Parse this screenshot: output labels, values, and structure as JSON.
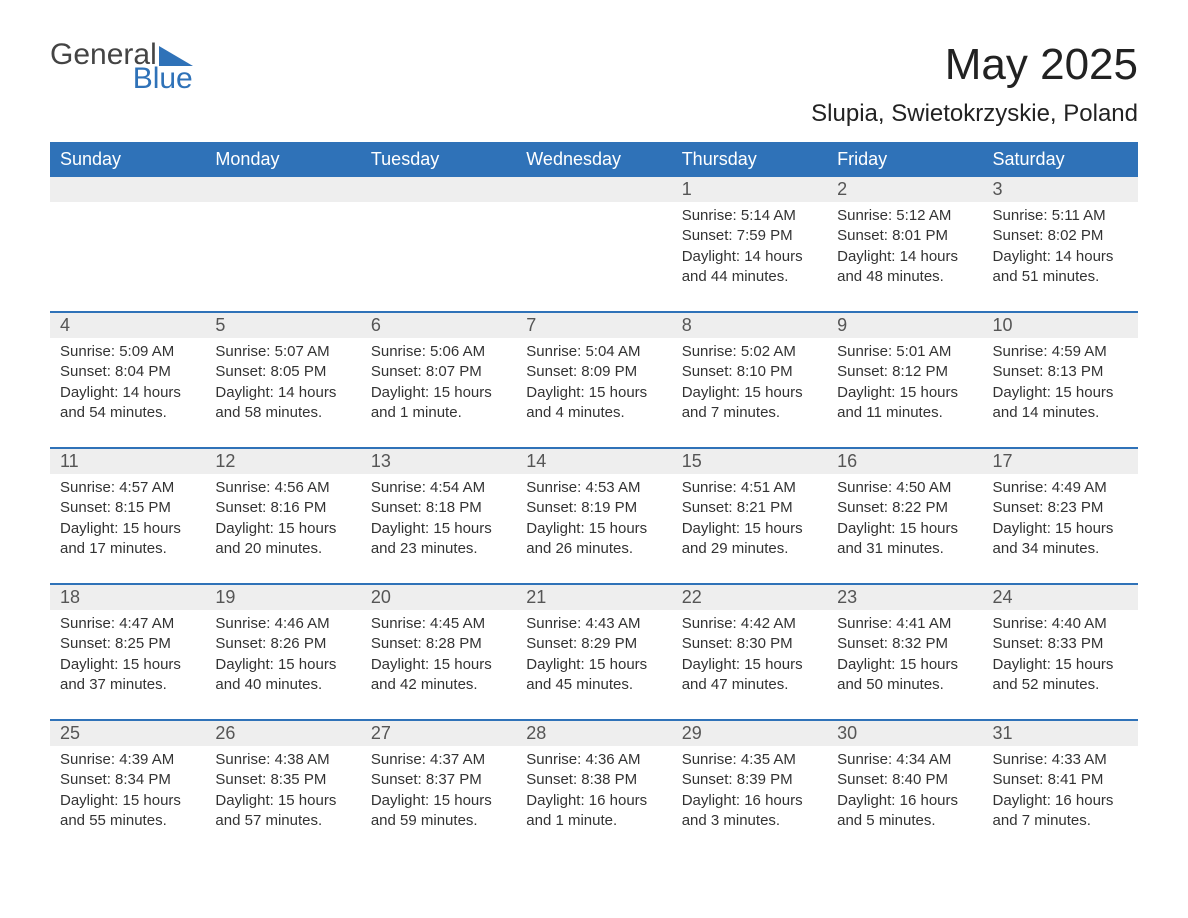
{
  "logo": {
    "text_dark": "General",
    "text_blue": "Blue",
    "accent_color": "#2f72b8"
  },
  "title": "May 2025",
  "location": "Slupia, Swietokrzyskie, Poland",
  "colors": {
    "header_bg": "#2f72b8",
    "header_text": "#ffffff",
    "daynum_bg": "#eeeeee",
    "daynum_text": "#555555",
    "body_text": "#333333",
    "page_bg": "#ffffff",
    "row_separator": "#2f72b8"
  },
  "typography": {
    "title_fontsize": 44,
    "location_fontsize": 24,
    "weekday_fontsize": 18,
    "daynum_fontsize": 18,
    "detail_fontsize": 15,
    "font_family": "Arial"
  },
  "weekdays": [
    "Sunday",
    "Monday",
    "Tuesday",
    "Wednesday",
    "Thursday",
    "Friday",
    "Saturday"
  ],
  "weeks": [
    [
      null,
      null,
      null,
      null,
      {
        "n": "1",
        "sr": "Sunrise: 5:14 AM",
        "ss": "Sunset: 7:59 PM",
        "dl": "Daylight: 14 hours and 44 minutes."
      },
      {
        "n": "2",
        "sr": "Sunrise: 5:12 AM",
        "ss": "Sunset: 8:01 PM",
        "dl": "Daylight: 14 hours and 48 minutes."
      },
      {
        "n": "3",
        "sr": "Sunrise: 5:11 AM",
        "ss": "Sunset: 8:02 PM",
        "dl": "Daylight: 14 hours and 51 minutes."
      }
    ],
    [
      {
        "n": "4",
        "sr": "Sunrise: 5:09 AM",
        "ss": "Sunset: 8:04 PM",
        "dl": "Daylight: 14 hours and 54 minutes."
      },
      {
        "n": "5",
        "sr": "Sunrise: 5:07 AM",
        "ss": "Sunset: 8:05 PM",
        "dl": "Daylight: 14 hours and 58 minutes."
      },
      {
        "n": "6",
        "sr": "Sunrise: 5:06 AM",
        "ss": "Sunset: 8:07 PM",
        "dl": "Daylight: 15 hours and 1 minute."
      },
      {
        "n": "7",
        "sr": "Sunrise: 5:04 AM",
        "ss": "Sunset: 8:09 PM",
        "dl": "Daylight: 15 hours and 4 minutes."
      },
      {
        "n": "8",
        "sr": "Sunrise: 5:02 AM",
        "ss": "Sunset: 8:10 PM",
        "dl": "Daylight: 15 hours and 7 minutes."
      },
      {
        "n": "9",
        "sr": "Sunrise: 5:01 AM",
        "ss": "Sunset: 8:12 PM",
        "dl": "Daylight: 15 hours and 11 minutes."
      },
      {
        "n": "10",
        "sr": "Sunrise: 4:59 AM",
        "ss": "Sunset: 8:13 PM",
        "dl": "Daylight: 15 hours and 14 minutes."
      }
    ],
    [
      {
        "n": "11",
        "sr": "Sunrise: 4:57 AM",
        "ss": "Sunset: 8:15 PM",
        "dl": "Daylight: 15 hours and 17 minutes."
      },
      {
        "n": "12",
        "sr": "Sunrise: 4:56 AM",
        "ss": "Sunset: 8:16 PM",
        "dl": "Daylight: 15 hours and 20 minutes."
      },
      {
        "n": "13",
        "sr": "Sunrise: 4:54 AM",
        "ss": "Sunset: 8:18 PM",
        "dl": "Daylight: 15 hours and 23 minutes."
      },
      {
        "n": "14",
        "sr": "Sunrise: 4:53 AM",
        "ss": "Sunset: 8:19 PM",
        "dl": "Daylight: 15 hours and 26 minutes."
      },
      {
        "n": "15",
        "sr": "Sunrise: 4:51 AM",
        "ss": "Sunset: 8:21 PM",
        "dl": "Daylight: 15 hours and 29 minutes."
      },
      {
        "n": "16",
        "sr": "Sunrise: 4:50 AM",
        "ss": "Sunset: 8:22 PM",
        "dl": "Daylight: 15 hours and 31 minutes."
      },
      {
        "n": "17",
        "sr": "Sunrise: 4:49 AM",
        "ss": "Sunset: 8:23 PM",
        "dl": "Daylight: 15 hours and 34 minutes."
      }
    ],
    [
      {
        "n": "18",
        "sr": "Sunrise: 4:47 AM",
        "ss": "Sunset: 8:25 PM",
        "dl": "Daylight: 15 hours and 37 minutes."
      },
      {
        "n": "19",
        "sr": "Sunrise: 4:46 AM",
        "ss": "Sunset: 8:26 PM",
        "dl": "Daylight: 15 hours and 40 minutes."
      },
      {
        "n": "20",
        "sr": "Sunrise: 4:45 AM",
        "ss": "Sunset: 8:28 PM",
        "dl": "Daylight: 15 hours and 42 minutes."
      },
      {
        "n": "21",
        "sr": "Sunrise: 4:43 AM",
        "ss": "Sunset: 8:29 PM",
        "dl": "Daylight: 15 hours and 45 minutes."
      },
      {
        "n": "22",
        "sr": "Sunrise: 4:42 AM",
        "ss": "Sunset: 8:30 PM",
        "dl": "Daylight: 15 hours and 47 minutes."
      },
      {
        "n": "23",
        "sr": "Sunrise: 4:41 AM",
        "ss": "Sunset: 8:32 PM",
        "dl": "Daylight: 15 hours and 50 minutes."
      },
      {
        "n": "24",
        "sr": "Sunrise: 4:40 AM",
        "ss": "Sunset: 8:33 PM",
        "dl": "Daylight: 15 hours and 52 minutes."
      }
    ],
    [
      {
        "n": "25",
        "sr": "Sunrise: 4:39 AM",
        "ss": "Sunset: 8:34 PM",
        "dl": "Daylight: 15 hours and 55 minutes."
      },
      {
        "n": "26",
        "sr": "Sunrise: 4:38 AM",
        "ss": "Sunset: 8:35 PM",
        "dl": "Daylight: 15 hours and 57 minutes."
      },
      {
        "n": "27",
        "sr": "Sunrise: 4:37 AM",
        "ss": "Sunset: 8:37 PM",
        "dl": "Daylight: 15 hours and 59 minutes."
      },
      {
        "n": "28",
        "sr": "Sunrise: 4:36 AM",
        "ss": "Sunset: 8:38 PM",
        "dl": "Daylight: 16 hours and 1 minute."
      },
      {
        "n": "29",
        "sr": "Sunrise: 4:35 AM",
        "ss": "Sunset: 8:39 PM",
        "dl": "Daylight: 16 hours and 3 minutes."
      },
      {
        "n": "30",
        "sr": "Sunrise: 4:34 AM",
        "ss": "Sunset: 8:40 PM",
        "dl": "Daylight: 16 hours and 5 minutes."
      },
      {
        "n": "31",
        "sr": "Sunrise: 4:33 AM",
        "ss": "Sunset: 8:41 PM",
        "dl": "Daylight: 16 hours and 7 minutes."
      }
    ]
  ]
}
